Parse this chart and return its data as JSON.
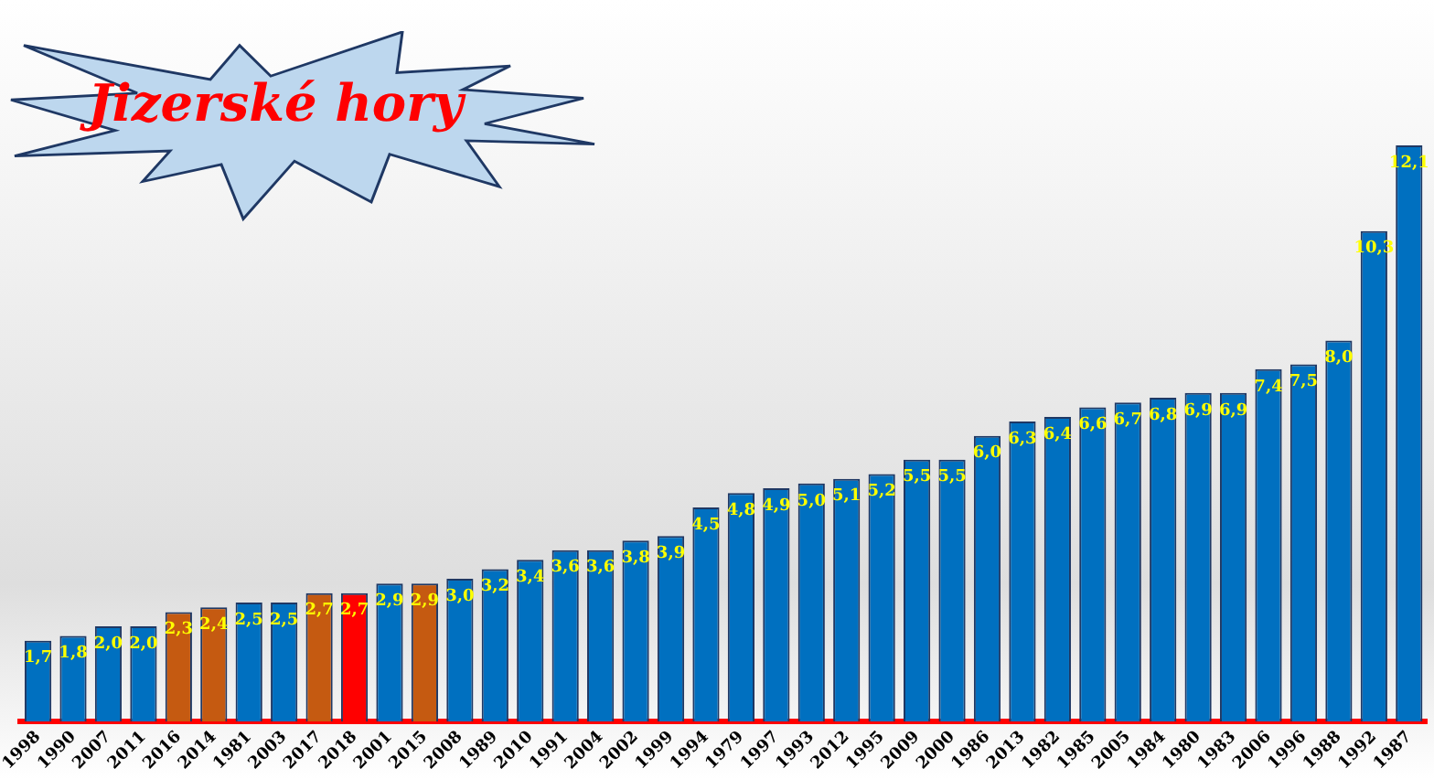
{
  "chart_data": {
    "type": "bar",
    "categories": [
      "1998",
      "1990",
      "2007",
      "2011",
      "2016",
      "2014",
      "1981",
      "2003",
      "2017",
      "2018",
      "2001",
      "2015",
      "2008",
      "1989",
      "2010",
      "1991",
      "2004",
      "2002",
      "1999",
      "1994",
      "1979",
      "1997",
      "1993",
      "2012",
      "1995",
      "2009",
      "2000",
      "1986",
      "2013",
      "1982",
      "1985",
      "2005",
      "1984",
      "1980",
      "1983",
      "2006",
      "1996",
      "1988",
      "1992",
      "1987"
    ],
    "values": [
      1.7,
      1.8,
      2.0,
      2.0,
      2.3,
      2.4,
      2.5,
      2.5,
      2.7,
      2.7,
      2.9,
      2.9,
      3.0,
      3.2,
      3.4,
      3.6,
      3.6,
      3.8,
      3.9,
      4.5,
      4.8,
      4.9,
      5.0,
      5.1,
      5.2,
      5.5,
      5.5,
      6.0,
      6.3,
      6.4,
      6.6,
      6.7,
      6.8,
      6.9,
      6.9,
      7.4,
      7.5,
      8.0,
      10.3,
      12.1
    ],
    "value_labels": [
      "1,7",
      "1,8",
      "2,0",
      "2,0",
      "2,3",
      "2,4",
      "2,5",
      "2,5",
      "2,7",
      "2,7",
      "2,9",
      "2,9",
      "3,0",
      "3,2",
      "3,4",
      "3,6",
      "3,6",
      "3,8",
      "3,9",
      "4,5",
      "4,8",
      "4,9",
      "5,0",
      "5,1",
      "5,2",
      "5,5",
      "5,5",
      "6,0",
      "6,3",
      "6,4",
      "6,6",
      "6,7",
      "6,8",
      "6,9",
      "6,9",
      "7,4",
      "7,5",
      "8,0",
      "10,3",
      "12,1"
    ],
    "colors": [
      "#0070c0",
      "#0070c0",
      "#0070c0",
      "#0070c0",
      "#c55a11",
      "#c55a11",
      "#0070c0",
      "#0070c0",
      "#c55a11",
      "#ff0000",
      "#0070c0",
      "#c55a11",
      "#0070c0",
      "#0070c0",
      "#0070c0",
      "#0070c0",
      "#0070c0",
      "#0070c0",
      "#0070c0",
      "#0070c0",
      "#0070c0",
      "#0070c0",
      "#0070c0",
      "#0070c0",
      "#0070c0",
      "#0070c0",
      "#0070c0",
      "#0070c0",
      "#0070c0",
      "#0070c0",
      "#0070c0",
      "#0070c0",
      "#0070c0",
      "#0070c0",
      "#0070c0",
      "#0070c0",
      "#0070c0",
      "#0070c0",
      "#0070c0",
      "#0070c0"
    ],
    "annotations": [
      "Jizerské hory"
    ],
    "grid": false,
    "legend": false
  }
}
